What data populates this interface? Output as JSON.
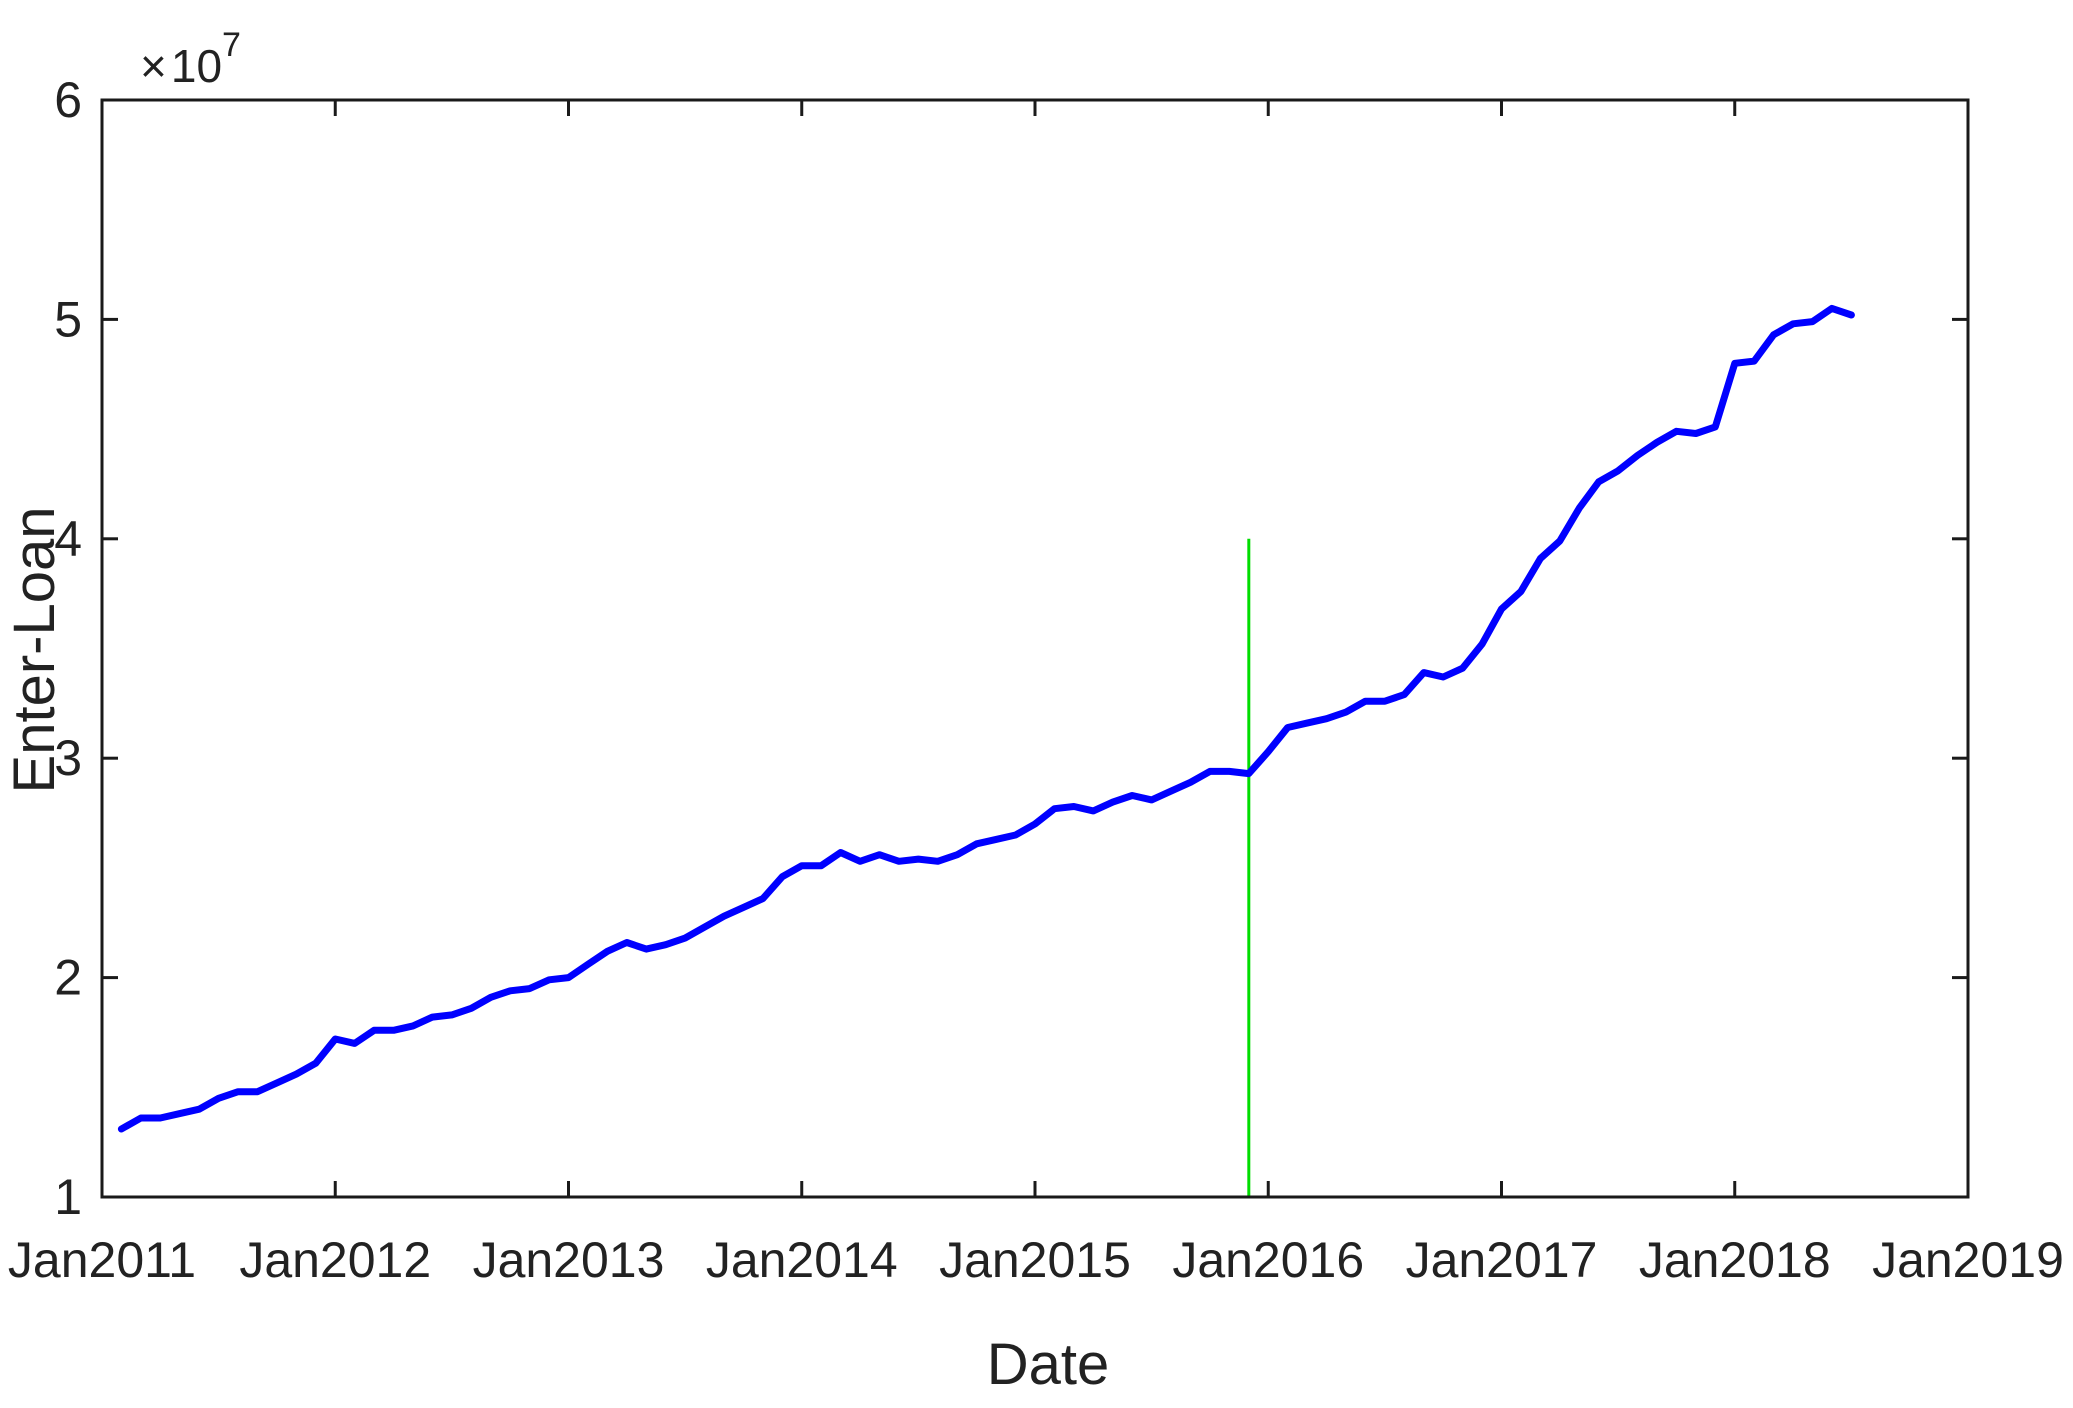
{
  "chart_data": {
    "type": "line",
    "title": "",
    "xlabel": "Date",
    "ylabel": "Enter-Loan",
    "y_multiplier": {
      "prefix": "×",
      "base": "10",
      "exponent": "7"
    },
    "xlim": [
      "2011-01",
      "2019-01"
    ],
    "ylim": [
      1,
      6
    ],
    "x_ticks": [
      {
        "value": "2011-01",
        "label": "Jan2011"
      },
      {
        "value": "2012-01",
        "label": "Jan2012"
      },
      {
        "value": "2013-01",
        "label": "Jan2013"
      },
      {
        "value": "2014-01",
        "label": "Jan2014"
      },
      {
        "value": "2015-01",
        "label": "Jan2015"
      },
      {
        "value": "2016-01",
        "label": "Jan2016"
      },
      {
        "value": "2017-01",
        "label": "Jan2017"
      },
      {
        "value": "2018-01",
        "label": "Jan2018"
      },
      {
        "value": "2019-01",
        "label": "Jan2019"
      }
    ],
    "y_ticks": [
      {
        "value": 1,
        "label": "1"
      },
      {
        "value": 2,
        "label": "2"
      },
      {
        "value": 3,
        "label": "3"
      },
      {
        "value": 4,
        "label": "4"
      },
      {
        "value": 5,
        "label": "5"
      },
      {
        "value": 6,
        "label": "6"
      }
    ],
    "grid": false,
    "series": [
      {
        "color": "#0000ff",
        "x": [
          "2011-02",
          "2011-03",
          "2011-04",
          "2011-05",
          "2011-06",
          "2011-07",
          "2011-08",
          "2011-09",
          "2011-10",
          "2011-11",
          "2011-12",
          "2012-01",
          "2012-02",
          "2012-03",
          "2012-04",
          "2012-05",
          "2012-06",
          "2012-07",
          "2012-08",
          "2012-09",
          "2012-10",
          "2012-11",
          "2012-12",
          "2013-01",
          "2013-02",
          "2013-03",
          "2013-04",
          "2013-05",
          "2013-06",
          "2013-07",
          "2013-08",
          "2013-09",
          "2013-10",
          "2013-11",
          "2013-12",
          "2014-01",
          "2014-02",
          "2014-03",
          "2014-04",
          "2014-05",
          "2014-06",
          "2014-07",
          "2014-08",
          "2014-09",
          "2014-10",
          "2014-11",
          "2014-12",
          "2015-01",
          "2015-02",
          "2015-03",
          "2015-04",
          "2015-05",
          "2015-06",
          "2015-07",
          "2015-08",
          "2015-09",
          "2015-10",
          "2015-11",
          "2015-12",
          "2016-01",
          "2016-02",
          "2016-03",
          "2016-04",
          "2016-05",
          "2016-06",
          "2016-07",
          "2016-08",
          "2016-09",
          "2016-10",
          "2016-11",
          "2016-12",
          "2017-01",
          "2017-02",
          "2017-03",
          "2017-04",
          "2017-05",
          "2017-06",
          "2017-07",
          "2017-08",
          "2017-09",
          "2017-10",
          "2017-11",
          "2017-12",
          "2018-01",
          "2018-02",
          "2018-03",
          "2018-04",
          "2018-05",
          "2018-06",
          "2018-07"
        ],
        "y": [
          1.31,
          1.36,
          1.36,
          1.38,
          1.4,
          1.45,
          1.48,
          1.48,
          1.52,
          1.56,
          1.61,
          1.72,
          1.7,
          1.76,
          1.76,
          1.78,
          1.82,
          1.83,
          1.86,
          1.91,
          1.94,
          1.95,
          1.99,
          2.0,
          2.06,
          2.12,
          2.16,
          2.13,
          2.15,
          2.18,
          2.23,
          2.28,
          2.32,
          2.36,
          2.46,
          2.51,
          2.51,
          2.57,
          2.53,
          2.56,
          2.53,
          2.54,
          2.53,
          2.56,
          2.61,
          2.63,
          2.65,
          2.7,
          2.77,
          2.78,
          2.76,
          2.8,
          2.83,
          2.81,
          2.85,
          2.89,
          2.94,
          2.94,
          2.93,
          3.03,
          3.14,
          3.16,
          3.18,
          3.21,
          3.26,
          3.26,
          3.29,
          3.39,
          3.37,
          3.41,
          3.52,
          3.68,
          3.76,
          3.91,
          3.99,
          4.14,
          4.26,
          4.31,
          4.38,
          4.44,
          4.49,
          4.48,
          4.51,
          4.8,
          4.81,
          4.93,
          4.98,
          4.99,
          5.05,
          5.02
        ]
      }
    ],
    "vertical_line": {
      "x": "2015-12",
      "y_from": 1,
      "y_to": 4,
      "color": "#00dd00"
    }
  }
}
